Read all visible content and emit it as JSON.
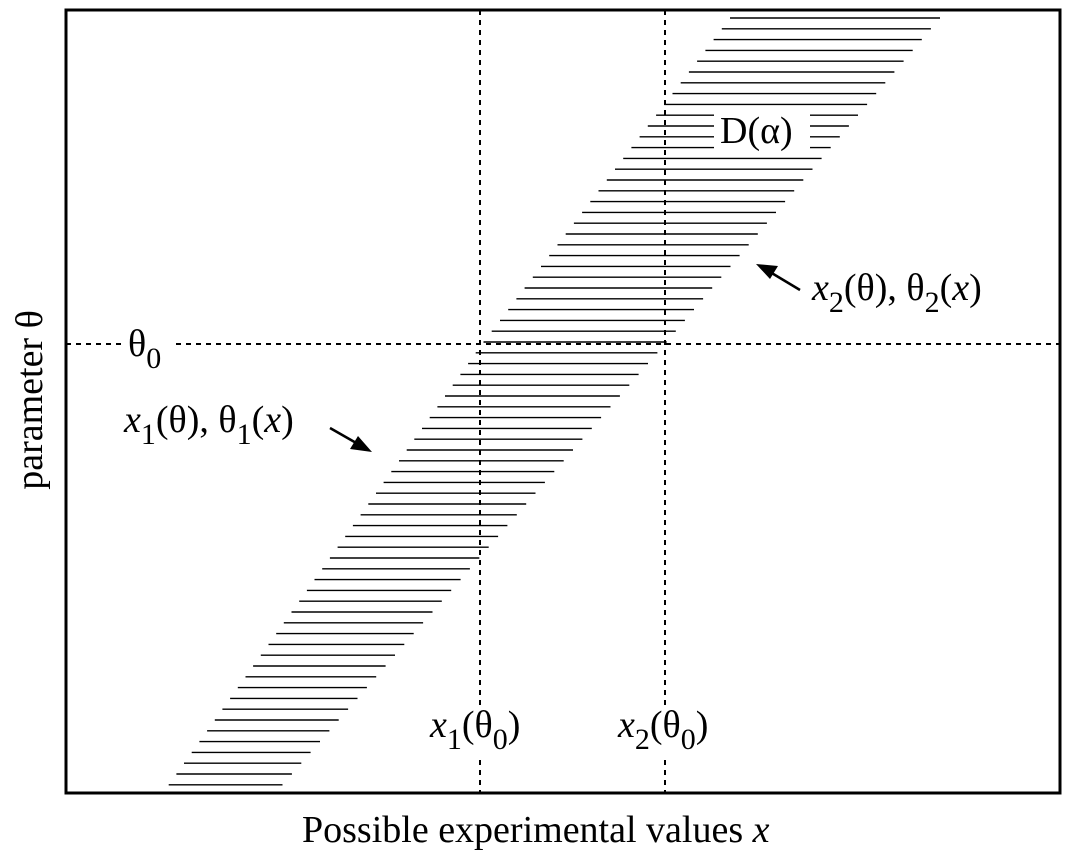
{
  "axes": {
    "xlabel": {
      "text": "Possible experimental values",
      "var": "x"
    },
    "ylabel": {
      "text": "parameter θ"
    }
  },
  "region_label": "D(α)",
  "labels": {
    "theta0": {
      "sym": "θ",
      "sub": "0"
    },
    "x1_theta0": {
      "var": "x",
      "sub": "1",
      "open": "(θ",
      "sub2": "0",
      "close": ")"
    },
    "x2_theta0": {
      "var": "x",
      "sub": "2",
      "open": "(θ",
      "sub2": "0",
      "close": ")"
    },
    "lower_boundary": {
      "v1": "x",
      "s1": "1",
      "m1": "(θ), θ",
      "s2": "1",
      "m2": "(",
      "v2": "x",
      "m3": ")"
    },
    "upper_boundary": {
      "v1": "x",
      "s1": "2",
      "m1": "(θ), θ",
      "s2": "2",
      "m2": "(",
      "v2": "x",
      "m3": ")"
    }
  }
}
